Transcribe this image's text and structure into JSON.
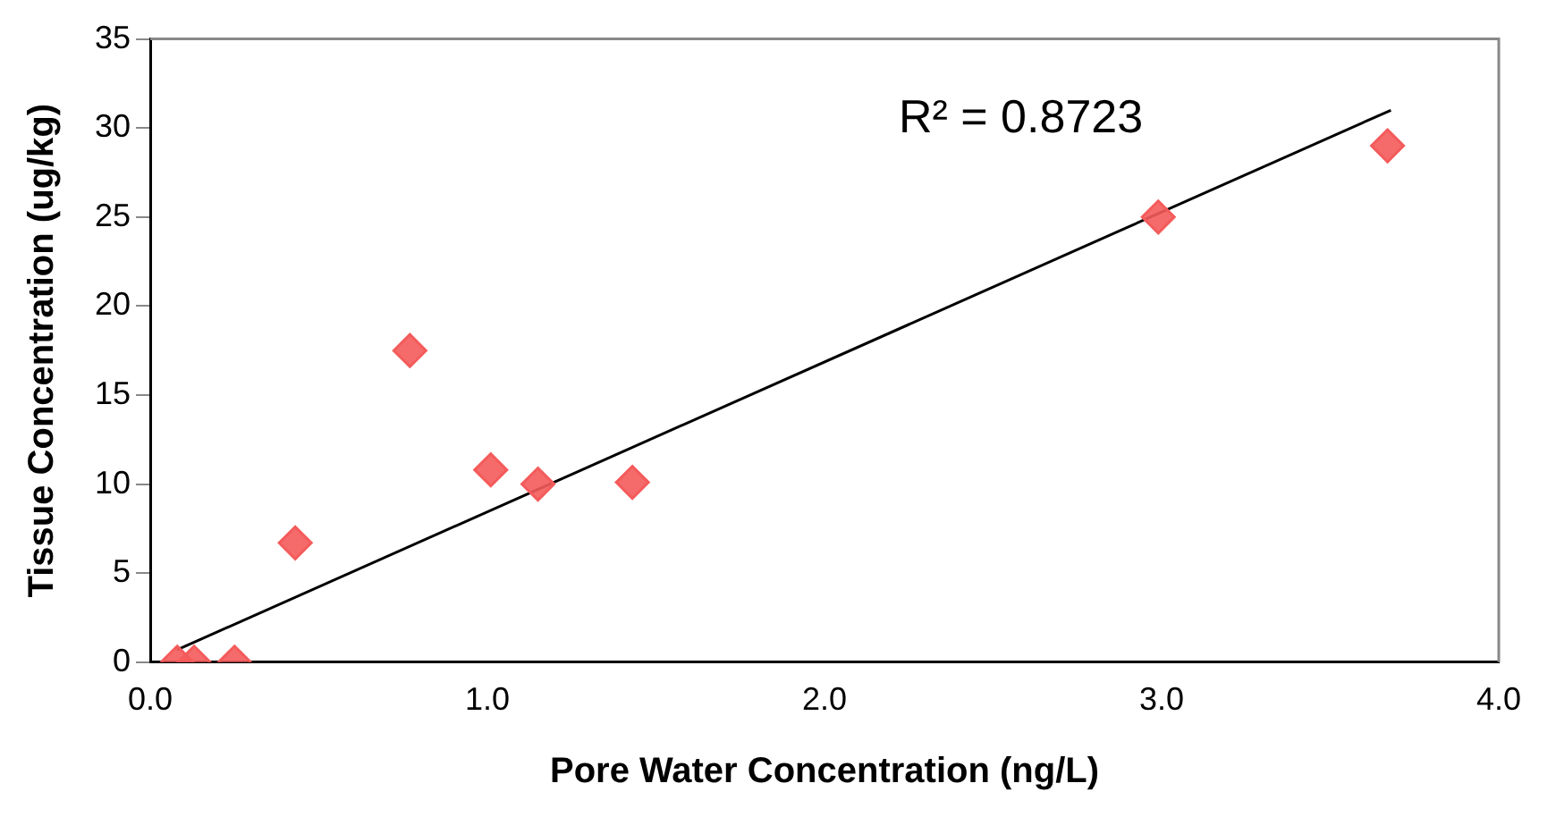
{
  "chart_data": {
    "type": "scatter",
    "xlabel": "Pore Water Concentration (ng/L)",
    "ylabel": "Tissue Concentration (ug/kg)",
    "xlim": [
      0,
      4
    ],
    "xticks": [
      {
        "value": 0,
        "label": "0.0"
      },
      {
        "value": 1,
        "label": "1.0"
      },
      {
        "value": 2,
        "label": "2.0"
      },
      {
        "value": 3,
        "label": "3.0"
      },
      {
        "value": 4,
        "label": "4.0"
      }
    ],
    "ylim": [
      0,
      35
    ],
    "yticks": [
      0,
      5,
      10,
      15,
      20,
      25,
      30,
      35
    ],
    "grid": false,
    "legend": false,
    "marker": "diamond",
    "series": [
      {
        "color": "#f45b5b",
        "x": [
          0.08,
          0.13,
          0.25,
          0.43,
          0.77,
          1.01,
          1.15,
          1.43,
          2.99,
          3.67
        ],
        "values": [
          0,
          0,
          0,
          6.7,
          17.5,
          10.8,
          10.0,
          10.1,
          25,
          29
        ]
      },
      {
        "type": "line",
        "color": "#000000",
        "x": [
          0.08,
          3.68
        ],
        "values": [
          0.7,
          31.0
        ],
        "marker": "none"
      }
    ],
    "annotations": [
      "R² = 0.8723"
    ]
  }
}
